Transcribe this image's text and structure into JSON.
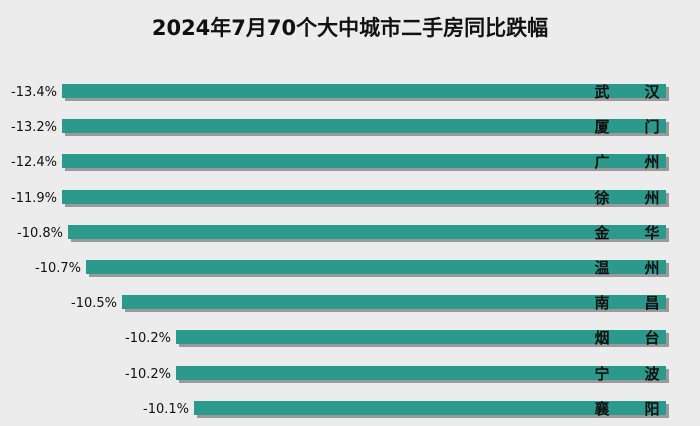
{
  "chart_data": {
    "type": "bar",
    "orientation": "horizontal",
    "title": "2024年7月70个大中城市二手房同比跌幅",
    "categories": [
      "武 汉",
      "厦 门",
      "广 州",
      "徐 州",
      "金 华",
      "温 州",
      "南 昌",
      "烟 台",
      "宁 波",
      "襄 阳"
    ],
    "values": [
      -13.4,
      -13.2,
      -12.4,
      -11.9,
      -10.8,
      -10.7,
      -10.5,
      -10.2,
      -10.2,
      -10.1
    ],
    "value_labels": [
      "-13.4%",
      "-13.2%",
      "-12.4%",
      "-11.9%",
      "-10.8%",
      "-10.7%",
      "-10.5%",
      "-10.2%",
      "-10.2%",
      "-10.1%"
    ],
    "unit": "%",
    "xlabel": "",
    "ylabel": "",
    "bar_color": "#2b9a8c",
    "grid": false,
    "legend": "none"
  }
}
